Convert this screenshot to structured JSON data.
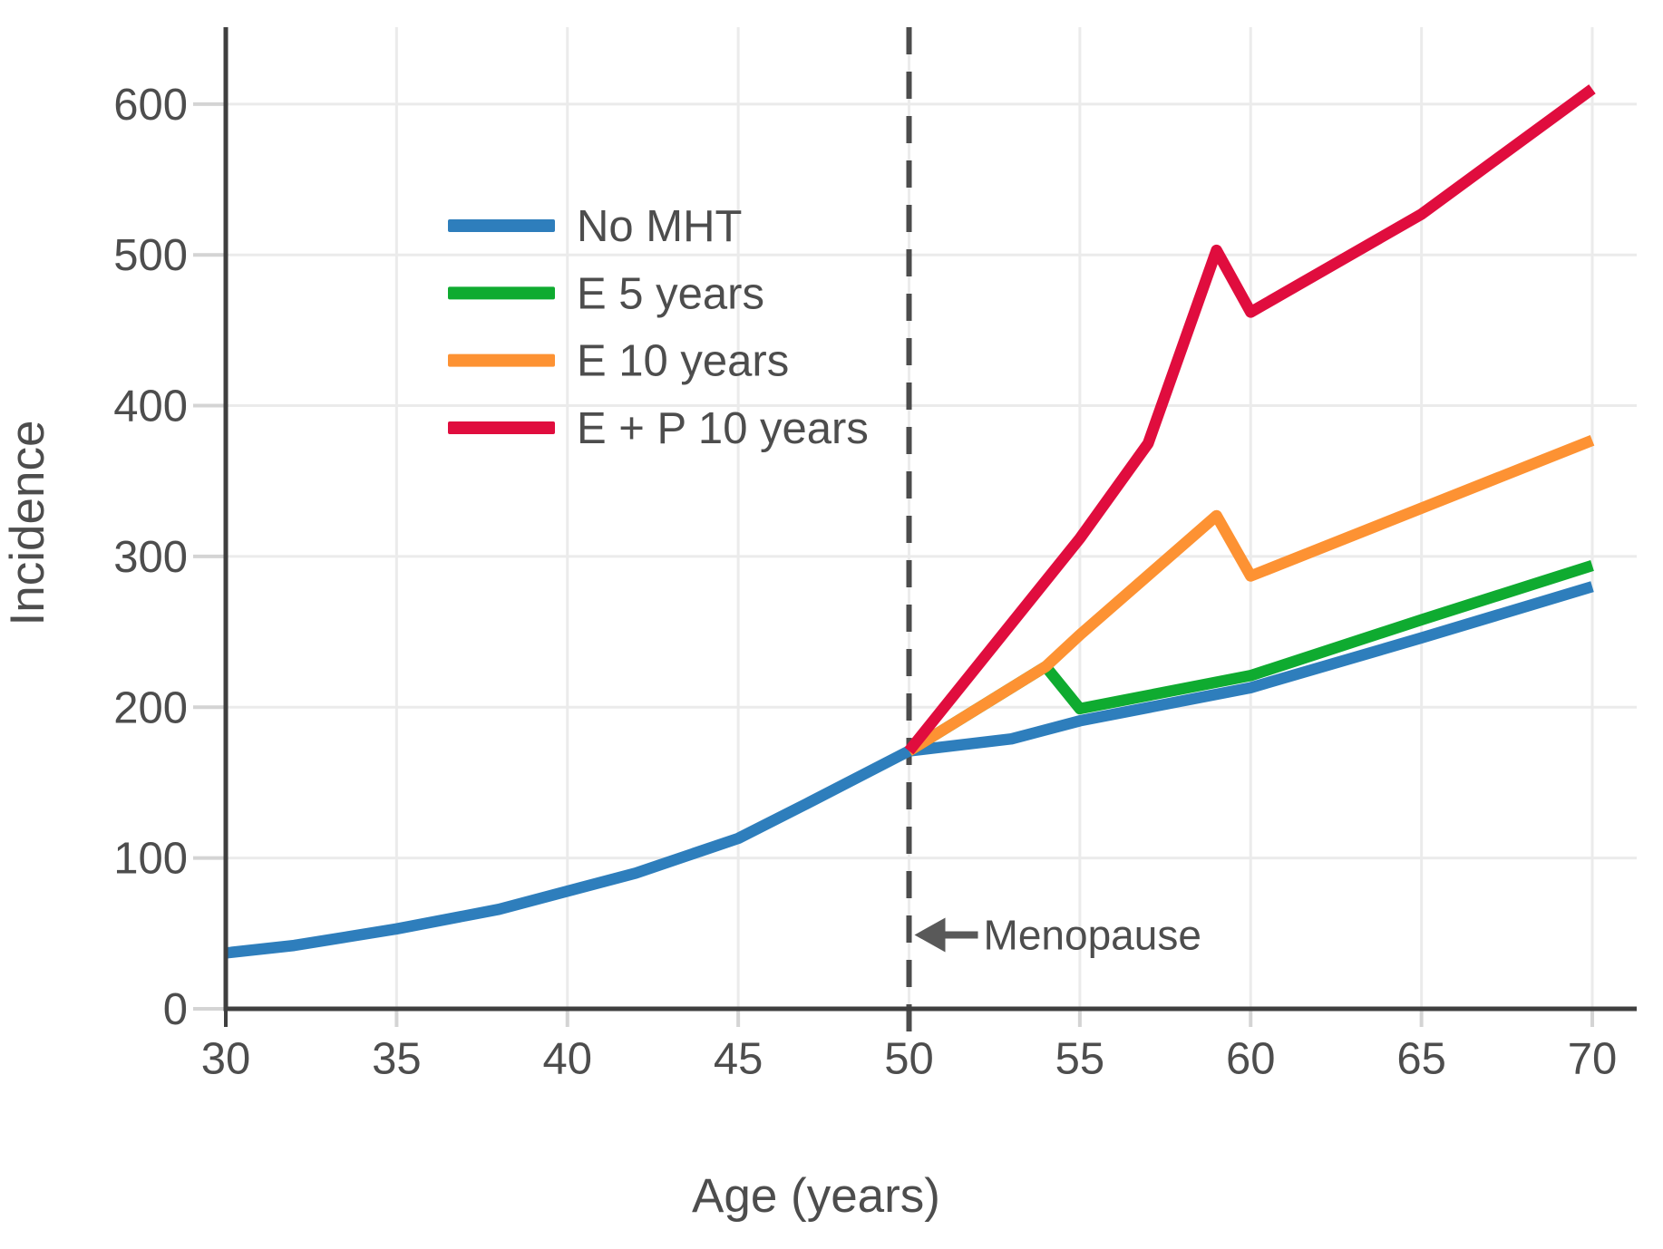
{
  "figure": {
    "xlabel": "Age (years)",
    "ylabel": "Incidence"
  },
  "annotation": {
    "text": "Menopause",
    "age": 50,
    "value": 49,
    "arrow": "left-arrow"
  },
  "colors": {
    "grid": "#ebebeb",
    "spine": "#3f3f3f",
    "tick": "#d4d4d4",
    "text": "#4d4d4d",
    "dashed_line": "#4c4c4c",
    "arrow": "#595959",
    "background": "#ffffff"
  },
  "chart_data": {
    "type": "line",
    "xlabel": "Age (years)",
    "ylabel": "Incidence",
    "x_ticks": [
      30,
      35,
      40,
      45,
      50,
      55,
      60,
      65,
      70
    ],
    "y_ticks": [
      0,
      100,
      200,
      300,
      400,
      500,
      600
    ],
    "xlim": [
      30,
      71.3
    ],
    "ylim": [
      0,
      651
    ],
    "grid": true,
    "legend_position": "upper-left-inside",
    "reference_line": {
      "x": 50,
      "style": "dashed",
      "label": "Menopause"
    },
    "series": [
      {
        "name": "No MHT",
        "color": "#2e7ebc",
        "points": [
          [
            30,
            37
          ],
          [
            32,
            42
          ],
          [
            35,
            53
          ],
          [
            38,
            66
          ],
          [
            40,
            78
          ],
          [
            42,
            90
          ],
          [
            45,
            113
          ],
          [
            47,
            136
          ],
          [
            50,
            171
          ],
          [
            53,
            179
          ],
          [
            55,
            191
          ],
          [
            60,
            213
          ],
          [
            65,
            246
          ],
          [
            70,
            280
          ]
        ]
      },
      {
        "name": "E 5 years",
        "color": "#0fab30",
        "points": [
          [
            50,
            171
          ],
          [
            54,
            227
          ],
          [
            55,
            199
          ],
          [
            60,
            221
          ],
          [
            65,
            258
          ],
          [
            70,
            294
          ]
        ]
      },
      {
        "name": "E 10 years",
        "color": "#fd9233",
        "points": [
          [
            50,
            171
          ],
          [
            54,
            227
          ],
          [
            55,
            248
          ],
          [
            59,
            327
          ],
          [
            60,
            287
          ],
          [
            65,
            332
          ],
          [
            70,
            377
          ]
        ]
      },
      {
        "name": "E + P 10 years",
        "color": "#e00d3e",
        "points": [
          [
            50,
            171
          ],
          [
            55,
            312
          ],
          [
            57,
            375
          ],
          [
            59,
            503
          ],
          [
            60,
            462
          ],
          [
            65,
            527
          ],
          [
            70,
            610
          ]
        ]
      }
    ]
  }
}
